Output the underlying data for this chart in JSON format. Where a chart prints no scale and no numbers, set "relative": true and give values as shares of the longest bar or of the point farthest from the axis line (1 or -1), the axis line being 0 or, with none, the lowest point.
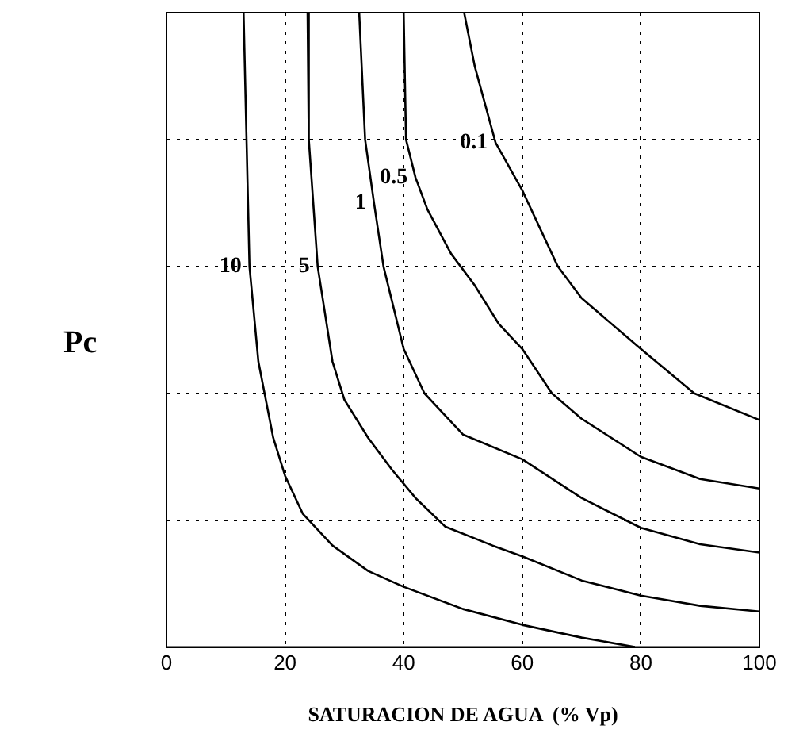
{
  "chart_data": {
    "type": "line",
    "xlabel": "SATURACION DE AGUA  (% Vp)",
    "ylabel": "Pc",
    "relative": true,
    "xlim": [
      0,
      100
    ],
    "xticks": [
      0,
      20,
      40,
      60,
      80,
      100
    ],
    "grid": true,
    "legend": false,
    "marker": "none",
    "line_style": "solid",
    "series": [
      {
        "name": "10",
        "color": "#000000",
        "x": [
          13,
          13.5,
          14,
          15.5,
          18,
          20,
          23,
          28,
          34,
          40,
          50,
          60,
          70,
          79
        ],
        "values": [
          1,
          0.8,
          0.6,
          0.45,
          0.33,
          0.27,
          0.21,
          0.16,
          0.12,
          0.095,
          0.06,
          0.035,
          0.015,
          0
        ]
      },
      {
        "name": "5",
        "color": "#000000",
        "x": [
          23.8,
          24,
          25.5,
          28,
          30,
          34,
          38,
          42,
          47,
          55,
          60,
          70,
          80,
          90,
          100
        ],
        "values": [
          1,
          0.8,
          0.6,
          0.45,
          0.39,
          0.33,
          0.28,
          0.235,
          0.19,
          0.16,
          0.143,
          0.105,
          0.081,
          0.065,
          0.056
        ]
      },
      {
        "name": "1",
        "color": "#000000",
        "x": [
          32.5,
          33.5,
          35,
          36.6,
          40,
          43.5,
          50,
          60,
          70,
          80,
          90,
          100
        ],
        "values": [
          1,
          0.8,
          0.7,
          0.6,
          0.47,
          0.4,
          0.335,
          0.296,
          0.235,
          0.188,
          0.162,
          0.149
        ]
      },
      {
        "name": "0.5",
        "color": "#000000",
        "x": [
          40,
          40.4,
          42,
          44,
          48,
          52,
          56,
          60,
          65,
          70,
          80,
          90,
          100
        ],
        "values": [
          1,
          0.8,
          0.74,
          0.69,
          0.62,
          0.57,
          0.51,
          0.47,
          0.4,
          0.36,
          0.3,
          0.265,
          0.25
        ]
      },
      {
        "name": "0.1",
        "color": "#000000",
        "x": [
          50.2,
          52,
          55.5,
          60,
          66,
          70,
          80,
          89,
          100
        ],
        "values": [
          1,
          0.915,
          0.795,
          0.72,
          0.6,
          0.55,
          0.47,
          0.4,
          0.358
        ]
      }
    ]
  }
}
